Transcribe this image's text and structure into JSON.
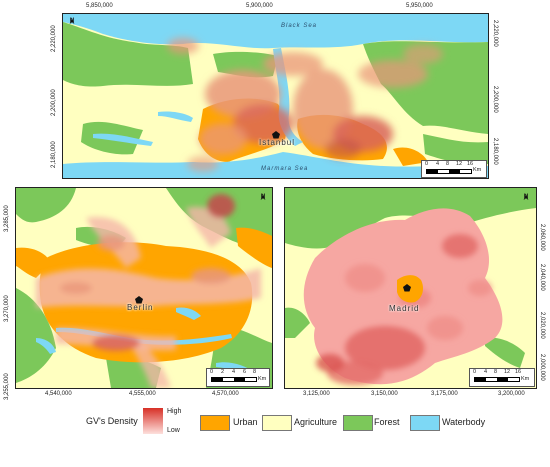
{
  "maps": {
    "istanbul": {
      "city": "Istanbul",
      "water_labels": [
        "Black Sea",
        "Marmara Sea"
      ],
      "x_ticks": [
        "5,850,000",
        "5,900,000",
        "5,950,000"
      ],
      "y_ticks": [
        "2,220,000",
        "2,200,000",
        "2,180,000"
      ],
      "scale": [
        "0",
        "4",
        "8",
        "12",
        "16"
      ],
      "scale_unit": "Km",
      "north": "N"
    },
    "berlin": {
      "city": "Berlin",
      "x_ticks": [
        "4,540,000",
        "4,555,000",
        "4,570,000"
      ],
      "y_ticks": [
        "3,285,000",
        "3,270,000",
        "3,255,000"
      ],
      "scale": [
        "0",
        "2",
        "4",
        "6",
        "8"
      ],
      "scale_unit": "Km",
      "north": "N"
    },
    "madrid": {
      "city": "Madrid",
      "x_ticks": [
        "3,125,000",
        "3,150,000",
        "3,175,000",
        "3,200,000"
      ],
      "y_ticks": [
        "2,060,000",
        "2,040,000",
        "2,020,000",
        "2,000,000"
      ],
      "scale": [
        "0",
        "4",
        "8",
        "12",
        "16"
      ],
      "scale_unit": "Km",
      "north": "N"
    }
  },
  "legend": {
    "density_title": "GV's Density",
    "high": "High",
    "low": "Low",
    "classes": [
      {
        "label": "Urban",
        "color": "#ffa500"
      },
      {
        "label": "Agriculture",
        "color": "#ffffc0"
      },
      {
        "label": "Forest",
        "color": "#7cc85a"
      },
      {
        "label": "Waterbody",
        "color": "#7dd8f5"
      }
    ],
    "density_colors": [
      "#d73027",
      "#fde0dd"
    ]
  }
}
